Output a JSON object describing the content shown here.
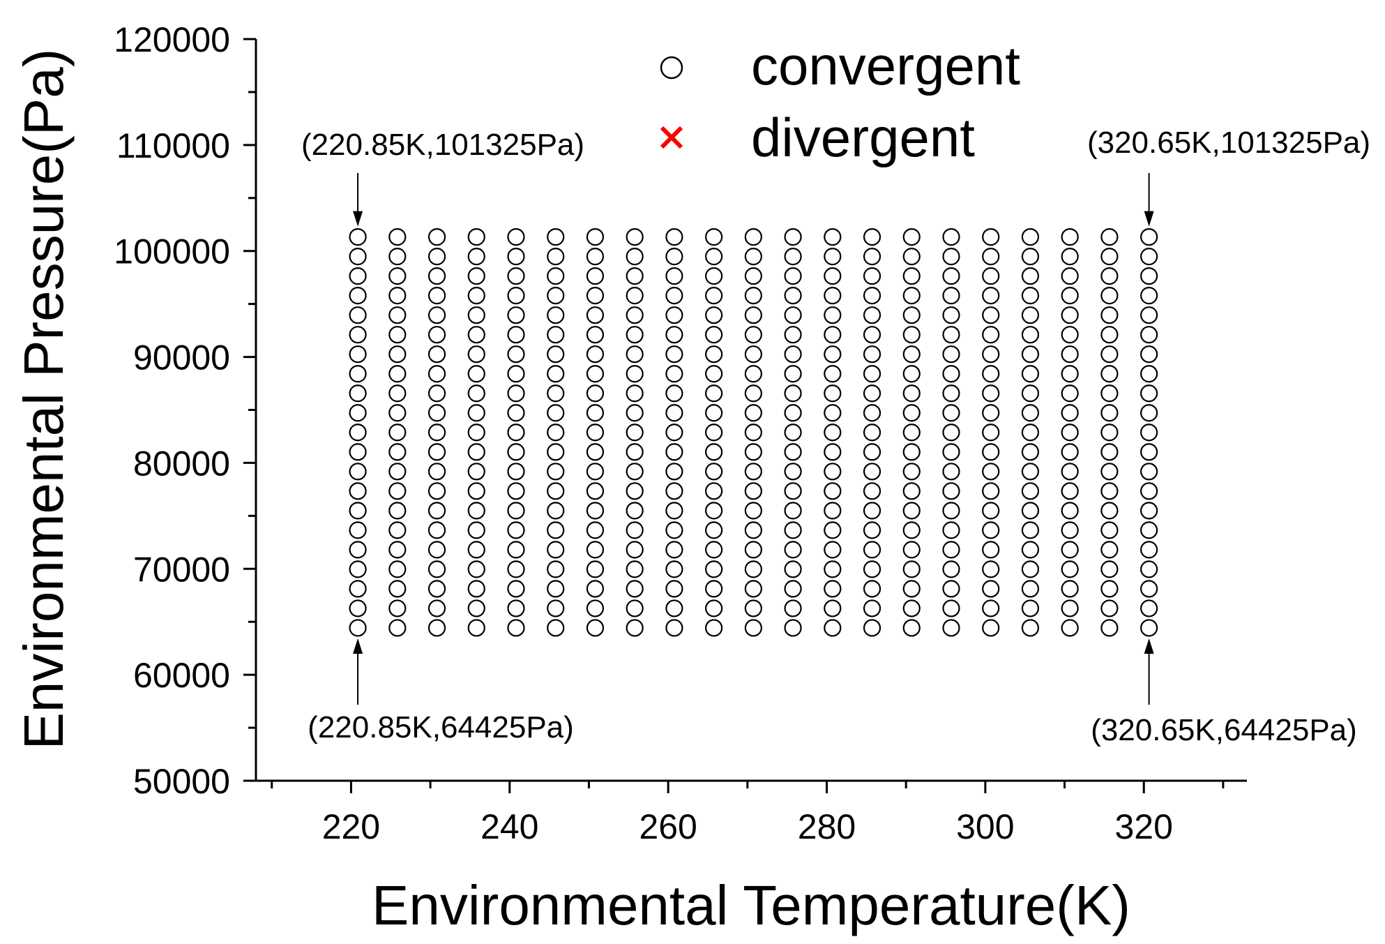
{
  "chart_data": {
    "type": "scatter",
    "xlabel": "Environmental Temperature(K)",
    "ylabel": "Environmental Pressure(Pa)",
    "xlim": [
      208,
      333
    ],
    "ylim": [
      50000,
      120000
    ],
    "x_ticks": [
      220,
      240,
      260,
      280,
      300,
      320
    ],
    "y_ticks": [
      50000,
      60000,
      70000,
      80000,
      90000,
      100000,
      110000,
      120000
    ],
    "grid": false,
    "legend_position": "top-center",
    "colors": {
      "convergent": "#000000",
      "divergent": "#ff0000"
    },
    "series": [
      {
        "name": "convergent",
        "marker": "circle-open",
        "grid_x": {
          "start": 220.85,
          "end": 320.65,
          "step": 4.99,
          "count": 21
        },
        "grid_y": {
          "start": 64425,
          "end": 101325,
          "step": 1845,
          "count": 21
        }
      },
      {
        "name": "divergent",
        "marker": "x",
        "x": [],
        "y": []
      }
    ],
    "annotations": [
      {
        "text": "(220.85K,101325Pa)",
        "x": 220.85,
        "y": 101325
      },
      {
        "text": "(320.65K,101325Pa)",
        "x": 320.65,
        "y": 101325
      },
      {
        "text": "(220.85K,64425Pa)",
        "x": 220.85,
        "y": 64425
      },
      {
        "text": "(320.65K,64425Pa)",
        "x": 320.65,
        "y": 64425
      }
    ]
  }
}
